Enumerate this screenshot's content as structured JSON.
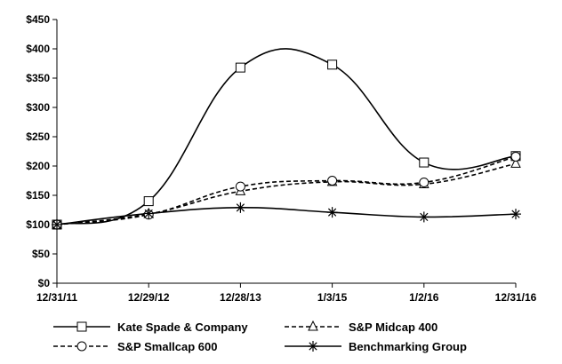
{
  "chart_data": {
    "type": "line",
    "title": "",
    "xlabel": "",
    "ylabel": "",
    "categories": [
      "12/31/11",
      "12/29/12",
      "12/28/13",
      "1/3/15",
      "1/2/16",
      "12/31/16"
    ],
    "y_ticks": [
      "$0",
      "$50",
      "$100",
      "$150",
      "$200",
      "$250",
      "$300",
      "$350",
      "$400",
      "$450"
    ],
    "ylim": [
      0,
      450
    ],
    "grid": false,
    "legend_position": "bottom",
    "series": [
      {
        "key": "kate",
        "name": "Kate Spade & Company",
        "dash": "solid",
        "marker": "square",
        "values": [
          100,
          140,
          368,
          373,
          206,
          217
        ]
      },
      {
        "key": "midcap",
        "name": "S&P Midcap 400",
        "dash": "dashed",
        "marker": "triangle",
        "values": [
          100,
          118,
          157,
          173,
          169,
          204
        ]
      },
      {
        "key": "smallcap",
        "name": "S&P Smallcap 600",
        "dash": "dashed",
        "marker": "circle",
        "values": [
          100,
          117,
          165,
          175,
          172,
          216
        ]
      },
      {
        "key": "bench",
        "name": "Benchmarking Group",
        "dash": "solid",
        "marker": "asterisk",
        "values": [
          100,
          119,
          129,
          121,
          113,
          118
        ]
      }
    ]
  }
}
